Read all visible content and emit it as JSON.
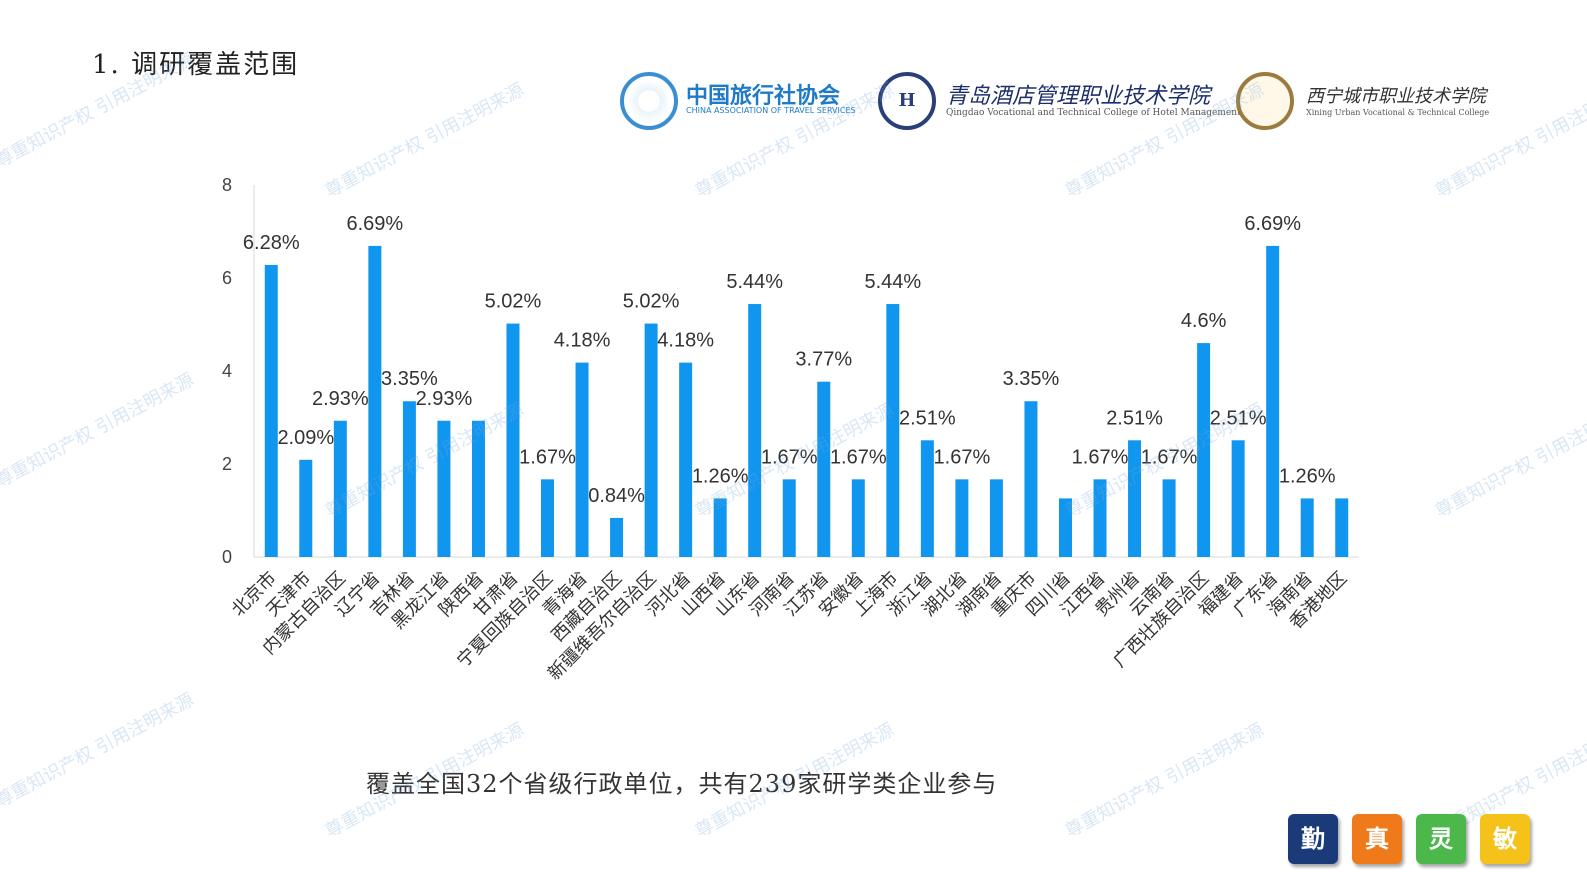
{
  "section_title": "1. 调研覆盖范围",
  "logos": [
    {
      "name": "中国旅行社协会",
      "subtitle": "CHINA ASSOCIATION OF TRAVEL SERVICES",
      "icon": "cats-emblem-icon"
    },
    {
      "name": "青岛酒店管理职业技术学院",
      "subtitle": "Qingdao Vocational and Technical College of Hotel Management",
      "icon": "qdhm-emblem-icon",
      "emblem_text": "H"
    },
    {
      "name": "西宁城市职业技术学院",
      "subtitle": "Xining Urban Vocational & Technical College",
      "icon": "xnuvtc-emblem-icon"
    }
  ],
  "watermark_text": "尊重知识产权  引用注明来源",
  "chart_data": {
    "type": "bar",
    "title": "",
    "xlabel": "",
    "ylabel": "",
    "ylim": [
      0,
      8
    ],
    "yticks": [
      0,
      2,
      4,
      6,
      8
    ],
    "grid": false,
    "categories": [
      "北京市",
      "天津市",
      "内蒙古自治区",
      "辽宁省",
      "吉林省",
      "黑龙江省",
      "陕西省",
      "甘肃省",
      "宁夏回族自治区",
      "青海省",
      "西藏自治区",
      "新疆维吾尔自治区",
      "河北省",
      "山西省",
      "山东省",
      "河南省",
      "江苏省",
      "安徽省",
      "上海市",
      "浙江省",
      "湖北省",
      "湖南省",
      "重庆市",
      "四川省",
      "江西省",
      "贵州省",
      "云南省",
      "广西壮族自治区",
      "福建省",
      "广东省",
      "海南省",
      "香港地区"
    ],
    "values": [
      6.28,
      2.09,
      2.93,
      6.69,
      3.35,
      2.93,
      2.93,
      5.02,
      1.67,
      4.18,
      0.84,
      5.02,
      4.18,
      1.26,
      5.44,
      1.67,
      3.77,
      1.67,
      5.44,
      2.51,
      1.67,
      1.67,
      3.35,
      1.26,
      1.67,
      2.51,
      1.67,
      4.6,
      2.51,
      6.69,
      1.26,
      1.26
    ],
    "data_labels": [
      "6.28%",
      "2.09%",
      "2.93%",
      "6.69%",
      "3.35%",
      "2.93%",
      "",
      "5.02%",
      "1.67%",
      "4.18%",
      "0.84%",
      "5.02%",
      "4.18%",
      "1.26%",
      "5.44%",
      "1.67%",
      "3.77%",
      "1.67%",
      "5.44%",
      "2.51%",
      "1.67%",
      "",
      "3.35%",
      "",
      "1.67%",
      "2.51%",
      "1.67%",
      "4.6%",
      "2.51%",
      "6.69%",
      "1.26%",
      ""
    ],
    "bar_color": "#1196f0"
  },
  "caption": "覆盖全国32个省级行政单位，共有239家研学类企业参与",
  "badges": [
    {
      "label": "勤",
      "color": "#1a3a7a"
    },
    {
      "label": "真",
      "color": "#f07a1a"
    },
    {
      "label": "灵",
      "color": "#4cb84c"
    },
    {
      "label": "敏",
      "color": "#f5c21a"
    }
  ]
}
